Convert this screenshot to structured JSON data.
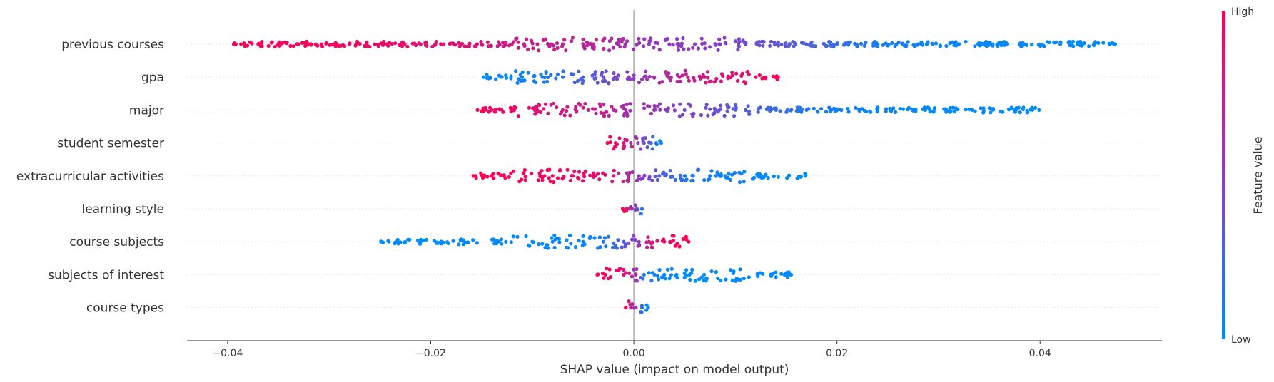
{
  "chart_data": {
    "type": "scatter",
    "subtype": "shap-beeswarm",
    "xlabel": "SHAP value (impact on model output)",
    "xlim": [
      -0.044,
      0.052
    ],
    "x_ticks": [
      -0.04,
      -0.02,
      0.0,
      0.02,
      0.04
    ],
    "x_tick_labels": [
      "−0.04",
      "−0.02",
      "0.00",
      "0.02",
      "0.04"
    ],
    "zero_line": 0.0,
    "grid": "dotted horizontal row lines",
    "colorbar": {
      "title": "Feature value",
      "high_label": "High",
      "low_label": "Low",
      "low_color": "#008bfb",
      "high_color": "#ff0052",
      "placement": "right"
    },
    "features": [
      {
        "name": "previous courses",
        "points": [
          {
            "x": -0.0392,
            "v": 1.0
          },
          {
            "x": -0.0394,
            "v": 1.0
          },
          {
            "x": -0.033,
            "v": 0.95
          },
          {
            "x": -0.0318,
            "v": 0.95
          },
          {
            "x": -0.0295,
            "v": 0.93
          },
          {
            "x": -0.028,
            "v": 0.92
          },
          {
            "x": -0.0255,
            "v": 0.9
          },
          {
            "x": -0.023,
            "v": 0.9
          },
          {
            "x": -0.021,
            "v": 0.88
          },
          {
            "x": -0.019,
            "v": 0.86
          },
          {
            "x": -0.017,
            "v": 0.85
          },
          {
            "x": -0.015,
            "v": 0.8
          },
          {
            "x": -0.012,
            "v": 0.78
          },
          {
            "x": -0.0095,
            "v": 0.75
          },
          {
            "x": -0.007,
            "v": 0.72
          },
          {
            "x": -0.004,
            "v": 0.68
          },
          {
            "x": -0.0015,
            "v": 0.62
          },
          {
            "x": 0.0015,
            "v": 0.55
          },
          {
            "x": 0.0035,
            "v": 0.52
          },
          {
            "x": 0.006,
            "v": 0.5
          },
          {
            "x": 0.0085,
            "v": 0.48
          },
          {
            "x": 0.011,
            "v": 0.42
          },
          {
            "x": 0.014,
            "v": 0.35
          },
          {
            "x": 0.017,
            "v": 0.28
          },
          {
            "x": 0.02,
            "v": 0.2
          },
          {
            "x": 0.024,
            "v": 0.1
          },
          {
            "x": 0.028,
            "v": 0.06
          },
          {
            "x": 0.032,
            "v": 0.04
          },
          {
            "x": 0.035,
            "v": 0.03
          },
          {
            "x": 0.038,
            "v": 0.02
          },
          {
            "x": 0.042,
            "v": 0.01
          },
          {
            "x": 0.0437,
            "v": 0.0
          },
          {
            "x": 0.0474,
            "v": 0.0
          }
        ]
      },
      {
        "name": "gpa",
        "points": [
          {
            "x": -0.0148,
            "v": 0.0
          },
          {
            "x": -0.013,
            "v": 0.02
          },
          {
            "x": -0.011,
            "v": 0.05
          },
          {
            "x": -0.009,
            "v": 0.1
          },
          {
            "x": -0.007,
            "v": 0.18
          },
          {
            "x": -0.005,
            "v": 0.28
          },
          {
            "x": -0.003,
            "v": 0.38
          },
          {
            "x": -0.0005,
            "v": 0.5
          },
          {
            "x": 0.002,
            "v": 0.62
          },
          {
            "x": 0.0045,
            "v": 0.7
          },
          {
            "x": 0.007,
            "v": 0.78
          },
          {
            "x": 0.0095,
            "v": 0.86
          },
          {
            "x": 0.012,
            "v": 0.93
          },
          {
            "x": 0.0142,
            "v": 1.0
          }
        ]
      },
      {
        "name": "major",
        "points": [
          {
            "x": -0.0154,
            "v": 1.0
          },
          {
            "x": -0.014,
            "v": 0.95
          },
          {
            "x": -0.012,
            "v": 0.9
          },
          {
            "x": -0.0095,
            "v": 0.85
          },
          {
            "x": -0.007,
            "v": 0.8
          },
          {
            "x": -0.0045,
            "v": 0.75
          },
          {
            "x": -0.002,
            "v": 0.7
          },
          {
            "x": -0.0008,
            "v": 0.6
          },
          {
            "x": 0.002,
            "v": 0.55
          },
          {
            "x": 0.005,
            "v": 0.45
          },
          {
            "x": 0.008,
            "v": 0.38
          },
          {
            "x": 0.011,
            "v": 0.3
          },
          {
            "x": 0.014,
            "v": 0.2
          },
          {
            "x": 0.017,
            "v": 0.12
          },
          {
            "x": 0.02,
            "v": 0.08
          },
          {
            "x": 0.024,
            "v": 0.05
          },
          {
            "x": 0.0287,
            "v": 0.02
          },
          {
            "x": 0.0308,
            "v": 0.01
          },
          {
            "x": 0.0333,
            "v": 0.01
          },
          {
            "x": 0.0399,
            "v": 0.0
          }
        ]
      },
      {
        "name": "student semester",
        "points": [
          {
            "x": -0.0026,
            "v": 1.0
          },
          {
            "x": -0.0018,
            "v": 0.9
          },
          {
            "x": -0.001,
            "v": 0.8
          },
          {
            "x": -0.0003,
            "v": 0.7
          },
          {
            "x": 0.0004,
            "v": 0.55
          },
          {
            "x": 0.001,
            "v": 0.4
          },
          {
            "x": 0.0017,
            "v": 0.25
          },
          {
            "x": 0.0022,
            "v": 0.12
          },
          {
            "x": 0.0027,
            "v": 0.0
          }
        ]
      },
      {
        "name": "extracurricular activities",
        "points": [
          {
            "x": -0.0158,
            "v": 1.0
          },
          {
            "x": -0.0088,
            "v": 0.95
          },
          {
            "x": -0.008,
            "v": 0.95
          },
          {
            "x": -0.006,
            "v": 0.92
          },
          {
            "x": -0.004,
            "v": 0.88
          },
          {
            "x": -0.002,
            "v": 0.8
          },
          {
            "x": 0.0005,
            "v": 0.55
          },
          {
            "x": 0.0025,
            "v": 0.3
          },
          {
            "x": 0.005,
            "v": 0.15
          },
          {
            "x": 0.0075,
            "v": 0.08
          },
          {
            "x": 0.009,
            "v": 0.05
          },
          {
            "x": 0.0122,
            "v": 0.02
          },
          {
            "x": 0.0169,
            "v": 0.0
          }
        ]
      },
      {
        "name": "learning style",
        "points": [
          {
            "x": -0.0011,
            "v": 1.0
          },
          {
            "x": -0.0007,
            "v": 0.9
          },
          {
            "x": -0.0002,
            "v": 0.6
          },
          {
            "x": 0.0003,
            "v": 0.4
          },
          {
            "x": 0.0008,
            "v": 0.1
          }
        ]
      },
      {
        "name": "course subjects",
        "points": [
          {
            "x": -0.0249,
            "v": 0.0
          },
          {
            "x": -0.01,
            "v": 0.02
          },
          {
            "x": -0.008,
            "v": 0.03
          },
          {
            "x": -0.005,
            "v": 0.05
          },
          {
            "x": -0.003,
            "v": 0.1
          },
          {
            "x": -0.001,
            "v": 0.3
          },
          {
            "x": 0.0005,
            "v": 0.55
          },
          {
            "x": 0.0015,
            "v": 0.8
          },
          {
            "x": 0.003,
            "v": 0.92
          },
          {
            "x": 0.0054,
            "v": 1.0
          }
        ]
      },
      {
        "name": "subjects of interest",
        "points": [
          {
            "x": -0.0036,
            "v": 1.0
          },
          {
            "x": -0.0028,
            "v": 0.95
          },
          {
            "x": -0.001,
            "v": 0.85
          },
          {
            "x": 0.0002,
            "v": 0.6
          },
          {
            "x": 0.001,
            "v": 0.1
          },
          {
            "x": 0.003,
            "v": 0.02
          },
          {
            "x": 0.0042,
            "v": 0.0
          },
          {
            "x": 0.0155,
            "v": 0.0
          }
        ]
      },
      {
        "name": "course types",
        "points": [
          {
            "x": -0.0008,
            "v": 1.0
          },
          {
            "x": -0.0003,
            "v": 0.8
          },
          {
            "x": 0.0002,
            "v": 0.5
          },
          {
            "x": 0.0008,
            "v": 0.15
          },
          {
            "x": 0.0014,
            "v": 0.0
          }
        ]
      }
    ]
  }
}
